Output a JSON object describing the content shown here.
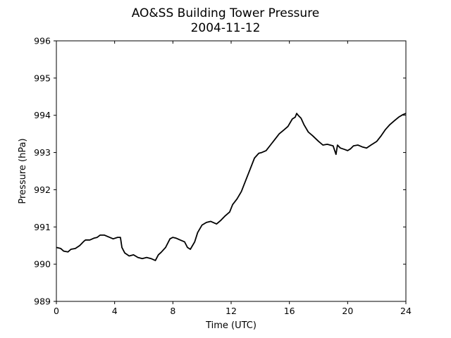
{
  "chart_data": {
    "type": "line",
    "title": "AO&SS Building Tower Pressure",
    "subtitle": "2004-11-12",
    "xlabel": "Time (UTC)",
    "ylabel": "Pressure (hPa)",
    "xlim": [
      0,
      24
    ],
    "ylim": [
      989,
      996
    ],
    "xticks": [
      0,
      4,
      8,
      12,
      16,
      20,
      24
    ],
    "yticks": [
      989,
      990,
      991,
      992,
      993,
      994,
      995,
      996
    ],
    "grid": false,
    "legend": "none",
    "line_color": "#000000",
    "series": [
      {
        "x": [
          0,
          0.3,
          0.5,
          0.8,
          1.0,
          1.3,
          1.6,
          1.9,
          2.0,
          2.3,
          2.6,
          2.8,
          3.0,
          3.3,
          3.6,
          3.9,
          4.2,
          4.4,
          4.5,
          4.7,
          5.0,
          5.3,
          5.6,
          5.9,
          6.2,
          6.5,
          6.8,
          7.0,
          7.2,
          7.5,
          7.8,
          8.0,
          8.2,
          8.5,
          8.8,
          9.0,
          9.2,
          9.5,
          9.7,
          10.0,
          10.3,
          10.6,
          11.0,
          11.3,
          11.6,
          11.9,
          12.1,
          12.4,
          12.7,
          13.0,
          13.3,
          13.6,
          13.9,
          14.1,
          14.4,
          14.7,
          15.0,
          15.3,
          15.6,
          15.9,
          16.2,
          16.4,
          16.5,
          16.6,
          16.8,
          17.0,
          17.3,
          17.6,
          18.0,
          18.3,
          18.6,
          19.0,
          19.2,
          19.3,
          19.5,
          19.8,
          20.0,
          20.2,
          20.4,
          20.7,
          21.0,
          21.3,
          21.6,
          22.0,
          22.3,
          22.6,
          22.9,
          23.2,
          23.5,
          23.8,
          24.0
        ],
        "values": [
          990.45,
          990.42,
          990.35,
          990.33,
          990.4,
          990.42,
          990.5,
          990.62,
          990.65,
          990.65,
          990.7,
          990.72,
          990.78,
          990.78,
          990.73,
          990.68,
          990.72,
          990.72,
          990.45,
          990.3,
          990.22,
          990.25,
          990.18,
          990.15,
          990.18,
          990.15,
          990.1,
          990.25,
          990.32,
          990.45,
          990.68,
          990.72,
          990.7,
          990.65,
          990.6,
          990.45,
          990.4,
          990.6,
          990.85,
          991.05,
          991.12,
          991.15,
          991.08,
          991.18,
          991.3,
          991.4,
          991.6,
          991.75,
          991.95,
          992.25,
          992.55,
          992.85,
          992.98,
          993.0,
          993.05,
          993.2,
          993.35,
          993.5,
          993.6,
          993.7,
          993.9,
          993.95,
          994.05,
          994.0,
          993.92,
          993.75,
          993.55,
          993.45,
          993.3,
          993.2,
          993.22,
          993.18,
          992.95,
          993.2,
          993.12,
          993.08,
          993.05,
          993.1,
          993.18,
          993.2,
          993.15,
          993.12,
          993.2,
          993.3,
          993.45,
          993.62,
          993.75,
          993.85,
          993.95,
          994.02,
          994.05
        ]
      }
    ]
  }
}
